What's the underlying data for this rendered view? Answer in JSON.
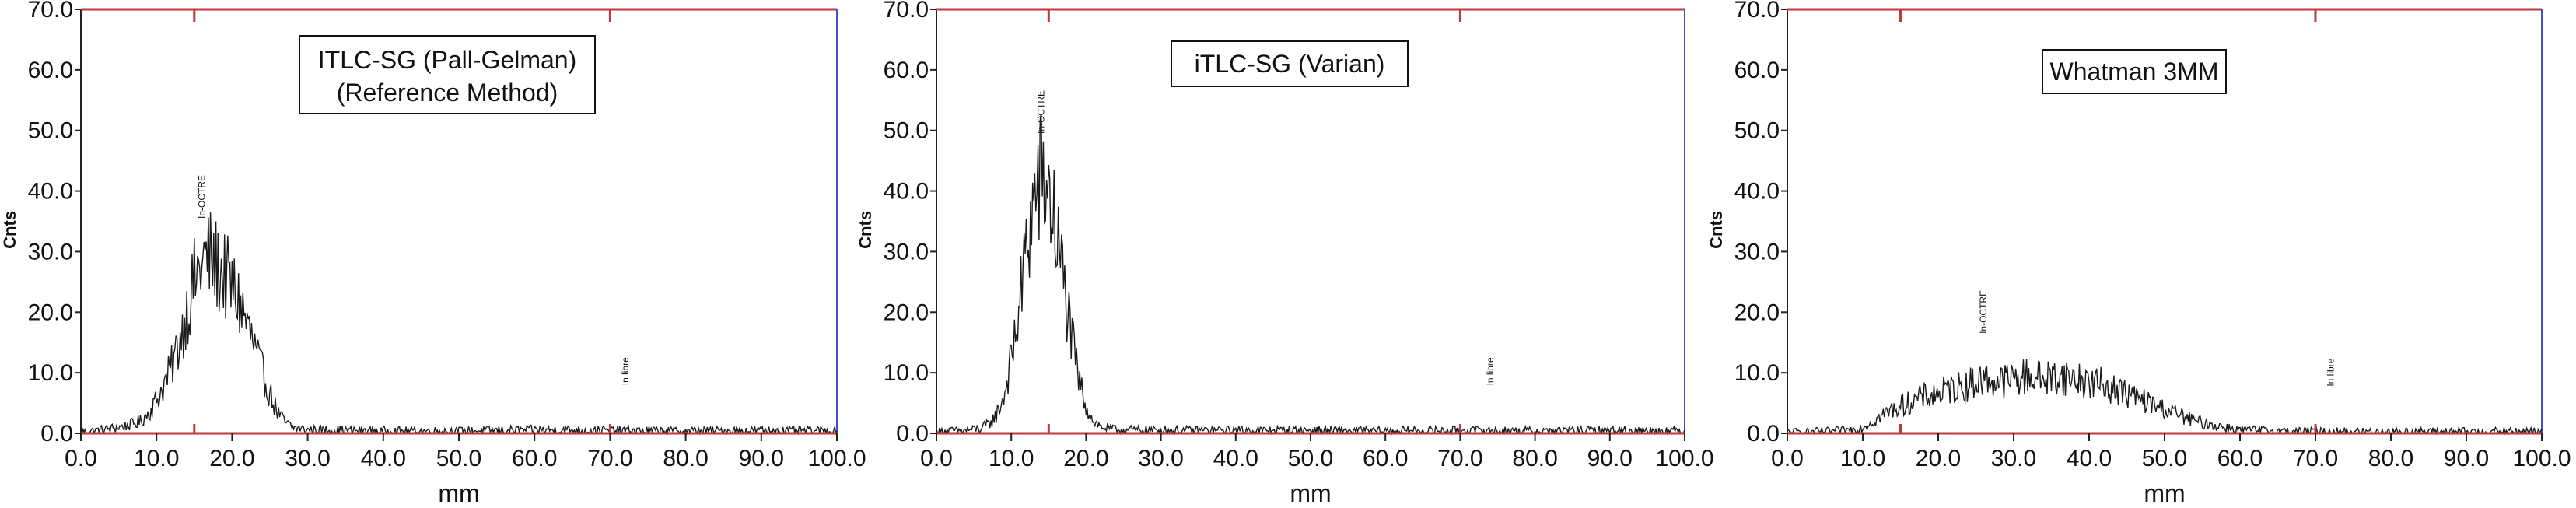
{
  "chart_data": [
    {
      "type": "line",
      "title": "ITLC-SG (Pall-Gelman)",
      "subtitle": "(Reference Method)",
      "xlabel": "mm",
      "ylabel": "Cnts",
      "xlim": [
        0,
        100
      ],
      "ylim": [
        0,
        70
      ],
      "xticks": [
        "0.0",
        "10.0",
        "20.0",
        "30.0",
        "40.0",
        "50.0",
        "60.0",
        "70.0",
        "80.0",
        "90.0",
        "100.0"
      ],
      "yticks": [
        "0.0",
        "10.0",
        "20.0",
        "30.0",
        "40.0",
        "50.0",
        "60.0",
        "70.0"
      ],
      "peak_annotations": [
        {
          "label": "In-OCTRE",
          "x": 16
        },
        {
          "label": "In libre",
          "x": 72
        }
      ],
      "region_markers_x": [
        15,
        70
      ],
      "colors": {
        "trace": "#1a1a1a",
        "frame": "#c0393b",
        "right_edge": "#4a4ad0"
      },
      "series": [
        {
          "x": [
            0,
            2,
            4,
            6,
            8,
            9,
            10,
            11,
            12,
            13,
            14,
            15,
            16,
            17,
            18,
            19,
            20,
            21,
            22,
            23,
            24,
            25,
            26,
            27,
            28,
            30,
            35,
            40,
            50,
            60,
            70,
            80,
            90,
            100
          ],
          "values": [
            0.3,
            0.5,
            0.8,
            1.2,
            2.0,
            3.5,
            5.5,
            8.0,
            11.0,
            15.0,
            20.0,
            25.0,
            28.0,
            29.0,
            27.5,
            26.0,
            24.0,
            21.5,
            18.0,
            14.0,
            10.0,
            6.5,
            3.5,
            1.8,
            1.0,
            0.6,
            0.5,
            0.4,
            0.4,
            0.6,
            0.5,
            0.4,
            0.5,
            0.4
          ]
        }
      ]
    },
    {
      "type": "line",
      "title": "iTLC-SG (Varian)",
      "xlabel": "mm",
      "ylabel": "Cnts",
      "xlim": [
        0,
        100
      ],
      "ylim": [
        0,
        70
      ],
      "xticks": [
        "0.0",
        "10.0",
        "20.0",
        "30.0",
        "40.0",
        "50.0",
        "60.0",
        "70.0",
        "80.0",
        "90.0",
        "100.0"
      ],
      "yticks": [
        "0.0",
        "10.0",
        "20.0",
        "30.0",
        "40.0",
        "50.0",
        "60.0",
        "70.0"
      ],
      "peak_annotations": [
        {
          "label": "In-OCTRE",
          "x": 14
        },
        {
          "label": "In libre",
          "x": 74
        }
      ],
      "region_markers_x": [
        15,
        70
      ],
      "colors": {
        "trace": "#1a1a1a",
        "frame": "#c0393b",
        "right_edge": "#4a4ad0"
      },
      "series": [
        {
          "x": [
            0,
            4,
            6,
            7,
            8,
            9,
            10,
            11,
            12,
            13,
            14,
            15,
            16,
            17,
            18,
            19,
            20,
            21,
            22,
            24,
            30,
            40,
            50,
            60,
            70,
            80,
            90,
            100
          ],
          "values": [
            0.3,
            0.5,
            0.8,
            1.5,
            3.0,
            6.0,
            12.0,
            20.0,
            30.0,
            38.0,
            42.0,
            40.0,
            33.0,
            25.0,
            16.0,
            9.0,
            4.5,
            2.0,
            1.0,
            0.6,
            0.5,
            0.5,
            0.5,
            0.4,
            0.5,
            0.4,
            0.5,
            0.4
          ]
        }
      ]
    },
    {
      "type": "line",
      "title": "Whatman 3MM",
      "xlabel": "mm",
      "ylabel": "Cnts",
      "xlim": [
        0,
        100
      ],
      "ylim": [
        0,
        70
      ],
      "xticks": [
        "0.0",
        "10.0",
        "20.0",
        "30.0",
        "40.0",
        "50.0",
        "60.0",
        "70.0",
        "80.0",
        "90.0",
        "100.0"
      ],
      "yticks": [
        "0.0",
        "10.0",
        "20.0",
        "30.0",
        "40.0",
        "50.0",
        "60.0",
        "70.0"
      ],
      "peak_annotations": [
        {
          "label": "In-OCTRE",
          "x": 26
        },
        {
          "label": "In libre",
          "x": 72
        }
      ],
      "region_markers_x": [
        15,
        70
      ],
      "colors": {
        "trace": "#1a1a1a",
        "frame": "#c0393b",
        "right_edge": "#4a4ad0"
      },
      "series": [
        {
          "x": [
            0,
            5,
            8,
            10,
            12,
            14,
            16,
            18,
            20,
            22,
            24,
            26,
            28,
            30,
            32,
            34,
            36,
            38,
            40,
            42,
            44,
            46,
            48,
            50,
            52,
            54,
            56,
            58,
            60,
            65,
            70,
            80,
            90,
            100
          ],
          "values": [
            0.2,
            0.3,
            0.5,
            1.0,
            2.5,
            4.0,
            5.0,
            6.0,
            6.5,
            7.5,
            8.0,
            9.0,
            8.5,
            9.0,
            9.5,
            9.0,
            9.5,
            9.0,
            8.5,
            8.0,
            7.0,
            6.0,
            5.0,
            4.0,
            3.0,
            2.0,
            1.5,
            1.0,
            0.6,
            0.4,
            0.3,
            0.3,
            0.3,
            0.3
          ]
        }
      ]
    }
  ]
}
